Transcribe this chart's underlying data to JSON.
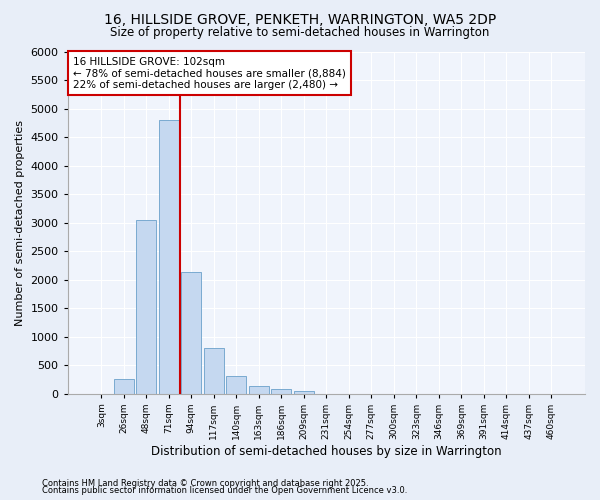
{
  "title1": "16, HILLSIDE GROVE, PENKETH, WARRINGTON, WA5 2DP",
  "title2": "Size of property relative to semi-detached houses in Warrington",
  "xlabel": "Distribution of semi-detached houses by size in Warrington",
  "ylabel": "Number of semi-detached properties",
  "categories": [
    "3sqm",
    "26sqm",
    "48sqm",
    "71sqm",
    "94sqm",
    "117sqm",
    "140sqm",
    "163sqm",
    "186sqm",
    "209sqm",
    "231sqm",
    "254sqm",
    "277sqm",
    "300sqm",
    "323sqm",
    "346sqm",
    "369sqm",
    "391sqm",
    "414sqm",
    "437sqm",
    "460sqm"
  ],
  "values": [
    0,
    250,
    3050,
    4800,
    2130,
    800,
    300,
    140,
    80,
    50,
    0,
    0,
    0,
    0,
    0,
    0,
    0,
    0,
    0,
    0,
    0
  ],
  "bar_color": "#c5d8f0",
  "bar_edge_color": "#7aaad0",
  "vline_x_index": 4,
  "vline_color": "#cc0000",
  "annotation_line1": "16 HILLSIDE GROVE: 102sqm",
  "annotation_line2": "← 78% of semi-detached houses are smaller (8,884)",
  "annotation_line3": "22% of semi-detached houses are larger (2,480) →",
  "annotation_box_color": "#ffffff",
  "annotation_box_edge_color": "#cc0000",
  "ylim": [
    0,
    6000
  ],
  "yticks": [
    0,
    500,
    1000,
    1500,
    2000,
    2500,
    3000,
    3500,
    4000,
    4500,
    5000,
    5500,
    6000
  ],
  "footer1": "Contains HM Land Registry data © Crown copyright and database right 2025.",
  "footer2": "Contains public sector information licensed under the Open Government Licence v3.0.",
  "bg_color": "#e8eef8",
  "plot_bg_color": "#f0f4fc",
  "grid_color": "#ffffff"
}
